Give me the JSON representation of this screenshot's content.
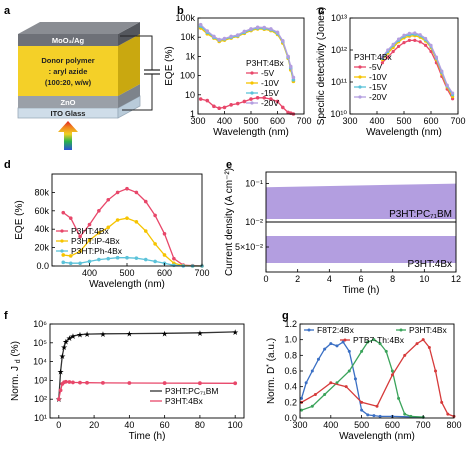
{
  "panels": {
    "a": {
      "letter": "a",
      "layers": [
        "MoO₃/Ag",
        "Donor polymer",
        ": aryl azide",
        "(100:20, w/w)",
        "ZnO",
        "ITO Glass"
      ]
    },
    "b": {
      "letter": "b"
    },
    "c": {
      "letter": "c"
    },
    "d": {
      "letter": "d"
    },
    "e": {
      "letter": "e"
    },
    "f": {
      "letter": "f"
    },
    "g": {
      "letter": "g"
    }
  },
  "chart_data": [
    {
      "id": "b",
      "type": "line",
      "xlabel": "Wavelength (nm)",
      "ylabel": "EQE (%)",
      "xlim": [
        300,
        700
      ],
      "ylim": [
        1,
        100000
      ],
      "yscale": "log",
      "xticks": [
        300,
        400,
        500,
        600,
        700
      ],
      "yticks": [
        1,
        10,
        100,
        1000,
        10000,
        100000
      ],
      "yticklabels": [
        "1",
        "10",
        "100",
        "1k",
        "10k",
        "100k"
      ],
      "legend_title": "P3HT:4Bx",
      "legend_position": "bottom-left",
      "x": [
        310,
        335,
        360,
        380,
        400,
        425,
        450,
        475,
        500,
        525,
        550,
        575,
        600,
        620,
        640,
        650,
        660
      ],
      "series": [
        {
          "name": "-5V",
          "color": "#e8476a",
          "values": [
            6,
            5,
            2.5,
            2,
            2.2,
            3,
            3.5,
            4.5,
            6,
            7,
            7,
            6,
            4.5,
            2.2,
            1.2,
            1.1,
            1
          ]
        },
        {
          "name": "-10V",
          "color": "#f6c400",
          "values": [
            30000,
            15000,
            9000,
            6000,
            7000,
            9000,
            11000,
            16000,
            22000,
            27000,
            26000,
            22000,
            14000,
            5000,
            800,
            200,
            50
          ]
        },
        {
          "name": "-15V",
          "color": "#5bc2d9",
          "values": [
            38000,
            18000,
            10000,
            7000,
            8000,
            10000,
            12000,
            18000,
            25000,
            30000,
            29000,
            25000,
            16000,
            6000,
            900,
            250,
            60
          ]
        },
        {
          "name": "-20V",
          "color": "#b39ee0",
          "values": [
            45000,
            21000,
            11000,
            7500,
            8500,
            11000,
            13000,
            20000,
            27000,
            33000,
            32000,
            27000,
            18000,
            6500,
            1000,
            300,
            80
          ]
        }
      ]
    },
    {
      "id": "c",
      "type": "line",
      "xlabel": "Wavelength (nm)",
      "ylabel": "Specific detectivity (Jones)",
      "xlim": [
        300,
        700
      ],
      "ylim": [
        10000000000,
        10000000000000
      ],
      "yscale": "log",
      "xticks": [
        300,
        400,
        500,
        600,
        700
      ],
      "yticks": [
        10000000000,
        100000000000,
        1000000000000,
        10000000000000
      ],
      "yticklabels": [
        "10¹⁰",
        "10¹¹",
        "10¹²",
        "10¹³"
      ],
      "legend_title": "P3HT:4Bx",
      "legend_position": "center-left",
      "x": [
        420,
        440,
        460,
        480,
        500,
        520,
        540,
        560,
        580,
        600,
        620,
        640,
        660,
        680
      ],
      "series": [
        {
          "name": "-5V",
          "color": "#e8476a",
          "values": [
            400000000000,
            600000000000,
            900000000000,
            1300000000000,
            1700000000000,
            2000000000000,
            2000000000000,
            1800000000000,
            1400000000000,
            900000000000,
            400000000000,
            150000000000,
            60000000000,
            30000000000
          ]
        },
        {
          "name": "-10V",
          "color": "#f6c400",
          "values": [
            500000000000,
            800000000000,
            1200000000000,
            1800000000000,
            2400000000000,
            2700000000000,
            2800000000000,
            2500000000000,
            1900000000000,
            1200000000000,
            500000000000,
            180000000000,
            70000000000,
            35000000000
          ]
        },
        {
          "name": "-15V",
          "color": "#5bc2d9",
          "values": [
            550000000000,
            900000000000,
            1400000000000,
            2000000000000,
            2700000000000,
            3000000000000,
            3100000000000,
            2800000000000,
            2100000000000,
            1300000000000,
            550000000000,
            200000000000,
            75000000000,
            40000000000
          ]
        },
        {
          "name": "-20V",
          "color": "#b39ee0",
          "values": [
            600000000000,
            1000000000000,
            1500000000000,
            2200000000000,
            2900000000000,
            3300000000000,
            3400000000000,
            3000000000000,
            2300000000000,
            1400000000000,
            600000000000,
            220000000000,
            80000000000,
            45000000000
          ]
        }
      ]
    },
    {
      "id": "d",
      "type": "line",
      "xlabel": "Wavelength (nm)",
      "ylabel": "EQE (%)",
      "xlim": [
        300,
        700
      ],
      "ylim": [
        0,
        100000
      ],
      "xticks": [
        400,
        500,
        600,
        700
      ],
      "yticks": [
        0,
        20000,
        40000,
        60000,
        80000
      ],
      "yticklabels": [
        "0.0",
        "20k",
        "40k",
        "60k",
        "80k"
      ],
      "legend_position": "bottom-left",
      "x": [
        330,
        350,
        375,
        400,
        425,
        450,
        475,
        500,
        525,
        550,
        575,
        600,
        625,
        650,
        675,
        700
      ],
      "series": [
        {
          "name": "P3HT:4Bx",
          "color": "#e8476a",
          "values": [
            58000,
            52000,
            32000,
            45000,
            60000,
            72000,
            80000,
            84000,
            80000,
            70000,
            55000,
            35000,
            8000,
            1000,
            300,
            0
          ]
        },
        {
          "name": "P3HT:IP-4Bx",
          "color": "#f6c400",
          "values": [
            12000,
            11000,
            16000,
            28000,
            36000,
            42000,
            50000,
            52000,
            48000,
            38000,
            24000,
            12000,
            3000,
            400,
            0,
            0
          ]
        },
        {
          "name": "P3HT:Ph-4Bx",
          "color": "#5bc2d9",
          "values": [
            4000,
            3000,
            3000,
            5000,
            7000,
            8000,
            9000,
            9000,
            8500,
            7000,
            5000,
            3000,
            800,
            100,
            0,
            0
          ]
        }
      ]
    },
    {
      "id": "e",
      "type": "area",
      "xlabel": "Time (h)",
      "ylabel": "Current density (A cm⁻²)",
      "xlim": [
        0,
        12
      ],
      "xticks": [
        0,
        2,
        4,
        6,
        8,
        10,
        12
      ],
      "color": "#b39ee0",
      "subplots": [
        {
          "label": "P3HT:PC₇₁BM",
          "yscale": "log",
          "ylim": [
            0.01,
            0.2
          ],
          "yticklabels": [
            "10⁻²",
            "10⁻¹"
          ],
          "upper": [
            0.08,
            0.1
          ],
          "lower": 0.012
        },
        {
          "label": "P3HT:4Bx",
          "ylim": [
            0.0,
            0.1
          ],
          "yticklabels": [
            "5×10⁻²"
          ],
          "upper": [
            0.072,
            0.072
          ],
          "lower": 0.018
        }
      ]
    },
    {
      "id": "f",
      "type": "line",
      "xlabel": "Time (h)",
      "ylabel": "Norm. J",
      "ylabel_sub": "d",
      "ylabel_unit": "(%)",
      "xlim": [
        -5,
        105
      ],
      "ylim": [
        10,
        1000000
      ],
      "yscale": "log",
      "xticks": [
        0,
        20,
        40,
        60,
        80,
        100
      ],
      "yticks": [
        10,
        100,
        1000,
        10000,
        100000,
        1000000
      ],
      "yticklabels": [
        "10¹",
        "10²",
        "10³",
        "10⁴",
        "10⁵",
        "10⁶"
      ],
      "legend_position": "bottom-right",
      "series": [
        {
          "name": "P3HT:PC₇₁BM",
          "color": "#333333",
          "marker": "star",
          "x": [
            0,
            1,
            2,
            3,
            4,
            6,
            8,
            12,
            16,
            25,
            40,
            60,
            80,
            100
          ],
          "values": [
            100,
            3000,
            20000,
            60000,
            120000,
            180000,
            230000,
            270000,
            290000,
            300000,
            310000,
            320000,
            340000,
            380000
          ]
        },
        {
          "name": "P3HT:4Bx",
          "color": "#e8476a",
          "marker": "circle",
          "x": [
            0,
            1,
            2,
            3,
            4,
            6,
            8,
            12,
            16,
            25,
            40,
            60,
            80,
            100
          ],
          "values": [
            100,
            300,
            650,
            800,
            850,
            820,
            780,
            760,
            750,
            740,
            730,
            720,
            710,
            700
          ]
        }
      ]
    },
    {
      "id": "g",
      "type": "line",
      "xlabel": "Wavelength (nm)",
      "ylabel": "Norm. D",
      "ylabel_sup": "*",
      "ylabel_unit": "(a.u.)",
      "xlim": [
        300,
        800
      ],
      "ylim": [
        0,
        1.2
      ],
      "xticks": [
        300,
        400,
        500,
        600,
        700,
        800
      ],
      "yticks": [
        0.0,
        0.2,
        0.4,
        0.6,
        0.8,
        1.0,
        1.2
      ],
      "series": [
        {
          "name": "F8T2:4Bx",
          "color": "#3a6fc4",
          "x": [
            305,
            320,
            340,
            360,
            380,
            400,
            420,
            440,
            460,
            480,
            500,
            520,
            540,
            560,
            600,
            700
          ],
          "values": [
            0.25,
            0.45,
            0.6,
            0.75,
            0.88,
            0.95,
            0.92,
            0.97,
            0.85,
            0.5,
            0.1,
            0.04,
            0.03,
            0.02,
            0.02,
            0.01
          ]
        },
        {
          "name": "P3HT:4Bx",
          "color": "#3aa35a",
          "x": [
            305,
            340,
            380,
            420,
            460,
            500,
            520,
            540,
            560,
            580,
            600,
            620,
            640,
            660,
            700
          ],
          "values": [
            0.1,
            0.15,
            0.3,
            0.45,
            0.6,
            0.85,
            0.97,
            1.0,
            0.95,
            0.85,
            0.6,
            0.25,
            0.05,
            0.02,
            0.01
          ]
        },
        {
          "name": "PTB7-Th:4Bx",
          "color": "#d63a3a",
          "x": [
            305,
            350,
            400,
            450,
            500,
            550,
            600,
            640,
            680,
            700,
            720,
            740,
            760,
            780,
            800
          ],
          "values": [
            0.2,
            0.3,
            0.45,
            0.4,
            0.2,
            0.15,
            0.55,
            0.8,
            0.95,
            1.0,
            0.9,
            0.6,
            0.2,
            0.05,
            0.02
          ]
        }
      ]
    }
  ]
}
